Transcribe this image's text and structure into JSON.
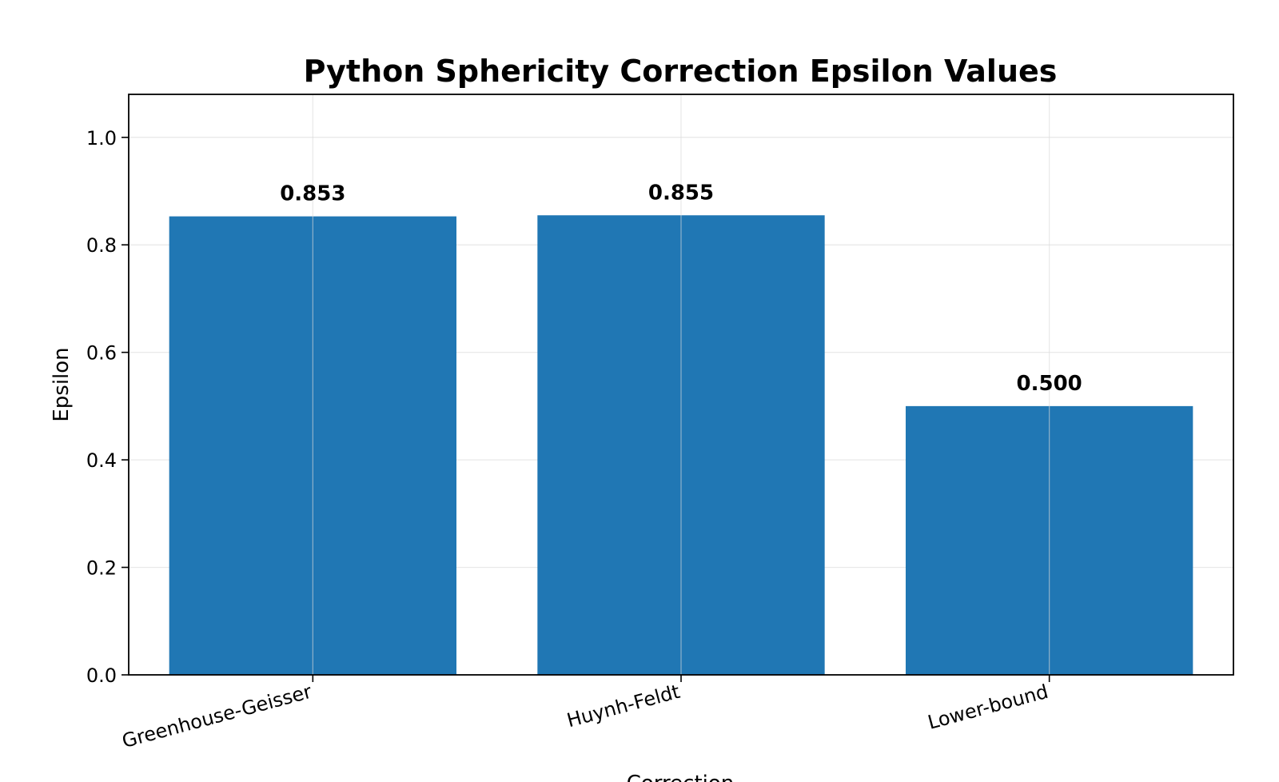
{
  "chart_data": {
    "type": "bar",
    "title": "Python Sphericity Correction Epsilon Values",
    "xlabel": "Correction",
    "ylabel": "Epsilon",
    "categories": [
      "Greenhouse-Geisser",
      "Huynh-Feldt",
      "Lower-bound"
    ],
    "values": [
      0.853,
      0.855,
      0.5
    ],
    "value_labels": [
      "0.853",
      "0.855",
      "0.500"
    ],
    "ylim": [
      0,
      1.08
    ],
    "yticks": [
      0.0,
      0.2,
      0.4,
      0.6,
      0.8,
      1.0
    ],
    "ytick_labels": [
      "0.0",
      "0.2",
      "0.4",
      "0.6",
      "0.8",
      "1.0"
    ],
    "grid": true,
    "bar_color": "#2077b4"
  }
}
